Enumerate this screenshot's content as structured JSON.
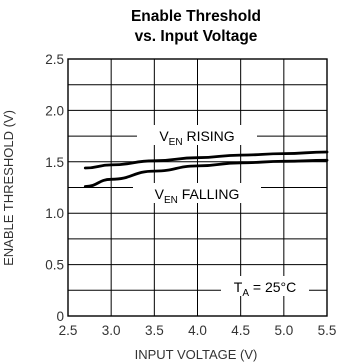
{
  "chart_data": {
    "type": "line",
    "title_line1": "Enable Threshold",
    "title_line2": "vs. Input Voltage",
    "xlabel": "INPUT VOLTAGE (V)",
    "ylabel": "ENABLE THRESHOLD (V)",
    "xlim": [
      2.5,
      5.5
    ],
    "ylim": [
      0,
      2.5
    ],
    "x_ticks": [
      "2.5",
      "3.0",
      "3.5",
      "4.0",
      "4.5",
      "5.0",
      "5.5"
    ],
    "y_ticks": [
      "0",
      "0.5",
      "1.0",
      "1.5",
      "2.0",
      "2.5"
    ],
    "grid": true,
    "series": [
      {
        "label_main": "V",
        "label_sub": "EN",
        "label_rest": " RISING",
        "x": [
          2.7,
          3.0,
          3.5,
          4.0,
          4.5,
          5.0,
          5.5
        ],
        "y": [
          1.44,
          1.47,
          1.51,
          1.54,
          1.565,
          1.58,
          1.595
        ]
      },
      {
        "label_main": "V",
        "label_sub": "EN",
        "label_rest": " FALLING",
        "x": [
          2.7,
          3.0,
          3.5,
          4.0,
          4.5,
          5.0,
          5.5
        ],
        "y": [
          1.26,
          1.33,
          1.41,
          1.46,
          1.49,
          1.505,
          1.515
        ]
      }
    ],
    "condition": {
      "main": "T",
      "sub": "A",
      "rest": " = 25°C"
    }
  }
}
